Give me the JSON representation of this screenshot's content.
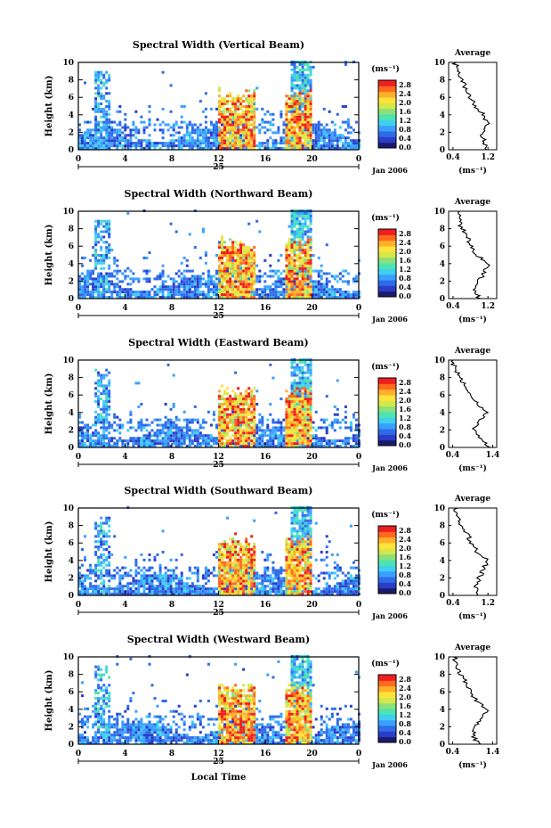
{
  "figure": {
    "xlabel": "Local Time",
    "date_label": "Jan 2006"
  },
  "colors": {
    "background": "#ffffff",
    "scale": [
      "#1a1a6e",
      "#2b3cc8",
      "#2e6be8",
      "#3aa0ff",
      "#3fd0f0",
      "#4ee3b0",
      "#8be07a",
      "#d4e84a",
      "#ffe23a",
      "#ffb02a",
      "#ff6a1f",
      "#ee1f1f"
    ]
  },
  "chart_data": [
    {
      "type": "heatmap",
      "title": "Spectral Width (Vertical Beam)",
      "ylabel": "Height (km)",
      "x_ticks": [
        "0",
        "4",
        "8",
        "12",
        "16",
        "20",
        "0"
      ],
      "day_label": "25",
      "date_label": "Jan 2006",
      "y_ticks": [
        "0",
        "2",
        "4",
        "6",
        "8",
        "10"
      ],
      "xlim": [
        0,
        24
      ],
      "ylim": [
        0,
        10
      ],
      "colorbar": {
        "unit": "(ms⁻¹)",
        "ticks": [
          "0.0",
          "0.4",
          "0.8",
          "1.2",
          "1.6",
          "2.0",
          "2.4",
          "2.8"
        ]
      },
      "average": {
        "title": "Average",
        "xlabel": "(ms⁻¹)",
        "x_ticks": [
          "0.4",
          "1.2"
        ],
        "xlim": [
          0.3,
          1.4
        ],
        "heights": [
          0,
          1,
          2,
          3,
          4,
          5,
          6,
          7,
          8,
          9,
          10
        ],
        "values": [
          1.15,
          1.1,
          1.05,
          1.2,
          1.1,
          0.9,
          0.8,
          0.7,
          0.6,
          0.5,
          0.45
        ]
      }
    },
    {
      "type": "heatmap",
      "title": "Spectral Width (Northward Beam)",
      "ylabel": "Height (km)",
      "x_ticks": [
        "0",
        "4",
        "8",
        "12",
        "16",
        "20",
        "0"
      ],
      "day_label": "25",
      "date_label": "Jan 2006",
      "y_ticks": [
        "0",
        "2",
        "4",
        "6",
        "8",
        "10"
      ],
      "xlim": [
        0,
        24
      ],
      "ylim": [
        0,
        10
      ],
      "colorbar": {
        "unit": "(ms⁻¹)",
        "ticks": [
          "0.0",
          "0.4",
          "0.8",
          "1.2",
          "1.6",
          "2.0",
          "2.4",
          "2.8"
        ]
      },
      "average": {
        "title": "Average",
        "xlabel": "(ms⁻¹)",
        "x_ticks": [
          "0.4",
          "1.2"
        ],
        "xlim": [
          0.3,
          1.4
        ],
        "heights": [
          0,
          1,
          2,
          3,
          4,
          5,
          6,
          7,
          8,
          9,
          10
        ],
        "values": [
          1.0,
          0.9,
          1.0,
          1.1,
          1.2,
          0.95,
          0.8,
          0.75,
          0.6,
          0.55,
          0.5
        ]
      }
    },
    {
      "type": "heatmap",
      "title": "Spectral Width (Eastward Beam)",
      "ylabel": "Height (km)",
      "x_ticks": [
        "0",
        "4",
        "8",
        "12",
        "16",
        "20",
        "0"
      ],
      "day_label": "25",
      "date_label": "Jan 2006",
      "y_ticks": [
        "0",
        "2",
        "4",
        "6",
        "8",
        "10"
      ],
      "xlim": [
        0,
        24
      ],
      "ylim": [
        0,
        10
      ],
      "colorbar": {
        "unit": "(ms⁻¹)",
        "ticks": [
          "0.0",
          "0.4",
          "0.8",
          "1.2",
          "1.6",
          "2.0",
          "2.4",
          "2.8"
        ]
      },
      "average": {
        "title": "Average",
        "xlabel": "(ms⁻¹)",
        "x_ticks": [
          "0.4",
          "1.4"
        ],
        "xlim": [
          0.3,
          1.5
        ],
        "heights": [
          0,
          1,
          2,
          3,
          4,
          5,
          6,
          7,
          8,
          9,
          10
        ],
        "values": [
          1.3,
          1.1,
          0.9,
          1.05,
          1.25,
          1.0,
          0.85,
          0.7,
          0.6,
          0.45,
          0.4
        ]
      }
    },
    {
      "type": "heatmap",
      "title": "Spectral Width (Southward Beam)",
      "ylabel": "Height (km)",
      "x_ticks": [
        "0",
        "4",
        "8",
        "12",
        "16",
        "20",
        "0"
      ],
      "day_label": "25",
      "date_label": "Jan 2006",
      "y_ticks": [
        "0",
        "2",
        "4",
        "6",
        "8",
        "10"
      ],
      "xlim": [
        0,
        24
      ],
      "ylim": [
        0,
        10
      ],
      "colorbar": {
        "unit": "(ms⁻¹)",
        "ticks": [
          "0.0",
          "0.4",
          "0.8",
          "1.2",
          "1.6",
          "2.0",
          "2.4",
          "2.8"
        ]
      },
      "average": {
        "title": "Average",
        "xlabel": "(ms⁻¹)",
        "x_ticks": [
          "0.4",
          "1.2"
        ],
        "xlim": [
          0.3,
          1.4
        ],
        "heights": [
          0,
          1,
          2,
          3,
          4,
          5,
          6,
          7,
          8,
          9,
          10
        ],
        "values": [
          1.0,
          0.9,
          1.0,
          1.1,
          1.2,
          0.95,
          0.8,
          0.75,
          0.6,
          0.5,
          0.45
        ]
      }
    },
    {
      "type": "heatmap",
      "title": "Spectral Width (Westward Beam)",
      "ylabel": "Height (km)",
      "x_ticks": [
        "0",
        "4",
        "8",
        "12",
        "16",
        "20",
        "0"
      ],
      "day_label": "25",
      "date_label": "Jan 2006",
      "y_ticks": [
        "0",
        "2",
        "4",
        "6",
        "8",
        "10"
      ],
      "xlim": [
        0,
        24
      ],
      "ylim": [
        0,
        10
      ],
      "colorbar": {
        "unit": "(ms⁻¹)",
        "ticks": [
          "0.0",
          "0.4",
          "0.8",
          "1.2",
          "1.6",
          "2.0",
          "2.4",
          "2.8"
        ]
      },
      "average": {
        "title": "Average",
        "xlabel": "(ms⁻¹)",
        "x_ticks": [
          "0.4",
          "1.4"
        ],
        "xlim": [
          0.3,
          1.5
        ],
        "heights": [
          0,
          1,
          2,
          3,
          4,
          5,
          6,
          7,
          8,
          9,
          10
        ],
        "values": [
          1.05,
          0.9,
          0.95,
          1.15,
          1.25,
          1.0,
          0.85,
          0.75,
          0.6,
          0.5,
          0.45
        ]
      }
    }
  ]
}
